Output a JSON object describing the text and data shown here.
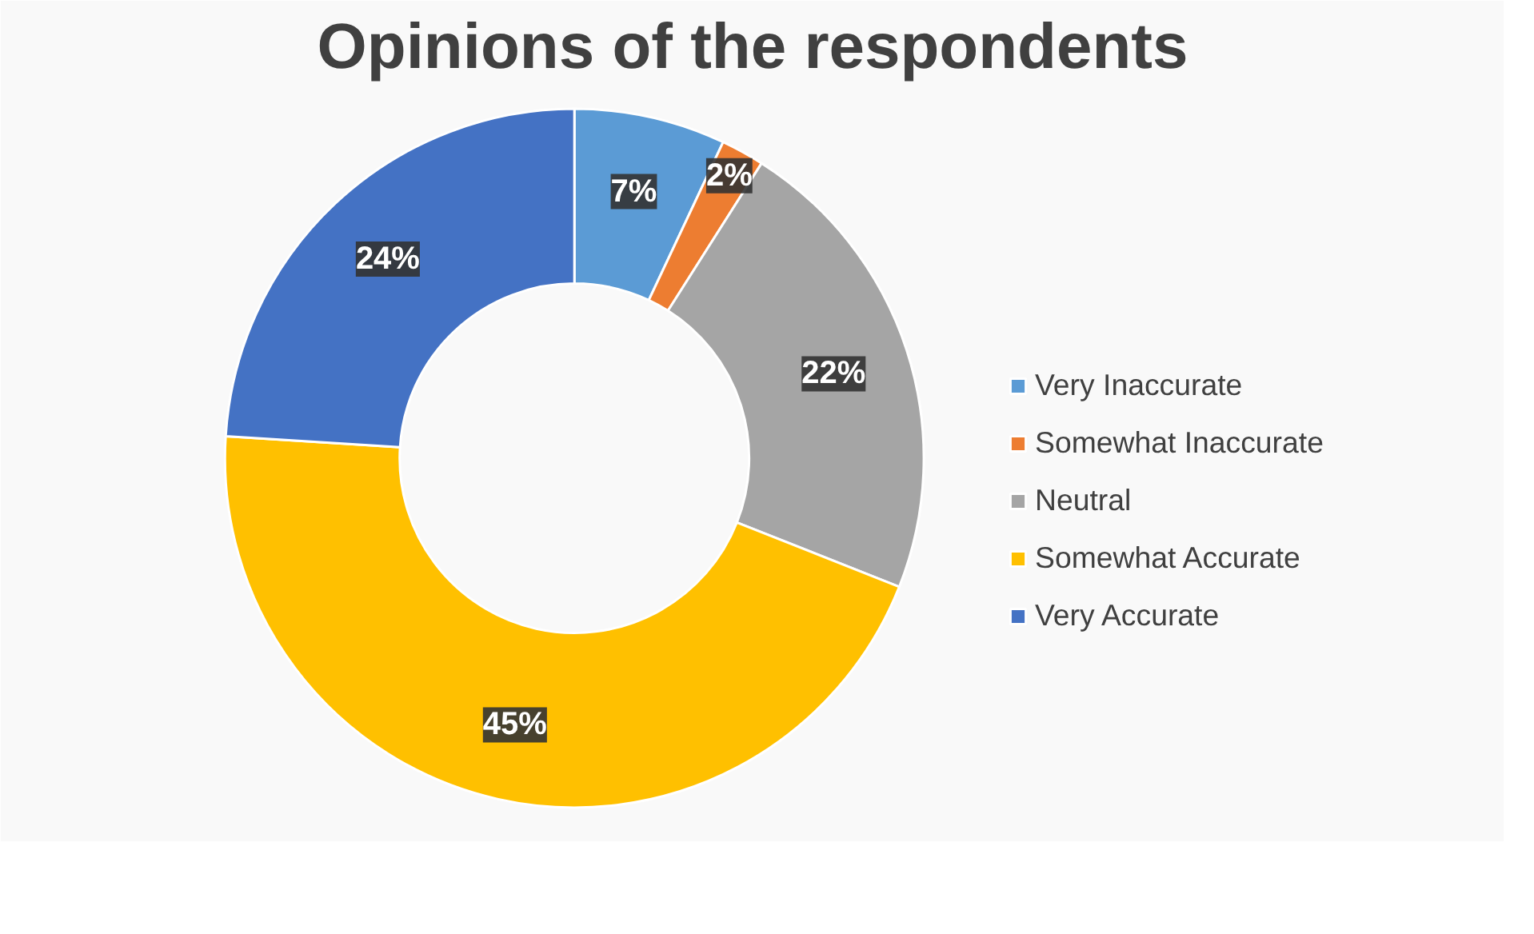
{
  "chart_data": {
    "type": "donut",
    "title": "Opinions of the respondents",
    "categories": [
      "Very Inaccurate",
      "Somewhat Inaccurate",
      "Neutral",
      "Somewhat Accurate",
      "Very Accurate"
    ],
    "values": [
      7,
      2,
      22,
      45,
      24
    ],
    "colors": [
      "#5b9bd5",
      "#ed7d31",
      "#a5a5a5",
      "#ffc000",
      "#4472c4"
    ],
    "value_labels": [
      "7%",
      "2%",
      "22%",
      "45%",
      "24%"
    ],
    "legend": "right"
  }
}
